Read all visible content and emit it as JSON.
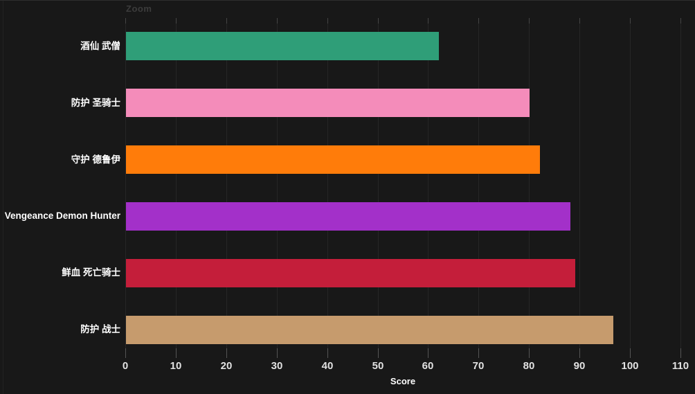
{
  "frame": {
    "background": "#181818",
    "top_border_color": "#2e2e2e"
  },
  "controls": {
    "zoom_label": "Zoom"
  },
  "chart_data": {
    "type": "bar",
    "orientation": "horizontal",
    "title": "",
    "xlabel": "Score",
    "ylabel": "",
    "xlim": [
      0,
      110
    ],
    "xticks": [
      0,
      10,
      20,
      30,
      40,
      50,
      60,
      70,
      80,
      90,
      100,
      110
    ],
    "grid": true,
    "legend": "none",
    "categories": [
      "酒仙 武僧",
      "防护 圣骑士",
      "守护 德鲁伊",
      "Vengeance Demon Hunter",
      "鲜血 死亡骑士",
      "防护 战士"
    ],
    "values": [
      62,
      80,
      82,
      88,
      89,
      96.5
    ],
    "bar_colors": [
      "#2F9E78",
      "#F48CBA",
      "#FF7C0A",
      "#A330C9",
      "#C41E3A",
      "#C69B6D"
    ],
    "style": {
      "background": "#181818",
      "gridline_color": "#262626",
      "top_tick_color": "#454545",
      "bottom_tick_color": "#555555",
      "tick_label_color": "#E2E2E2",
      "category_label_color": "#FFFFFF",
      "axis_label_color": "#FFFFFF",
      "zoom_label_color": "#3C3C3C"
    }
  }
}
